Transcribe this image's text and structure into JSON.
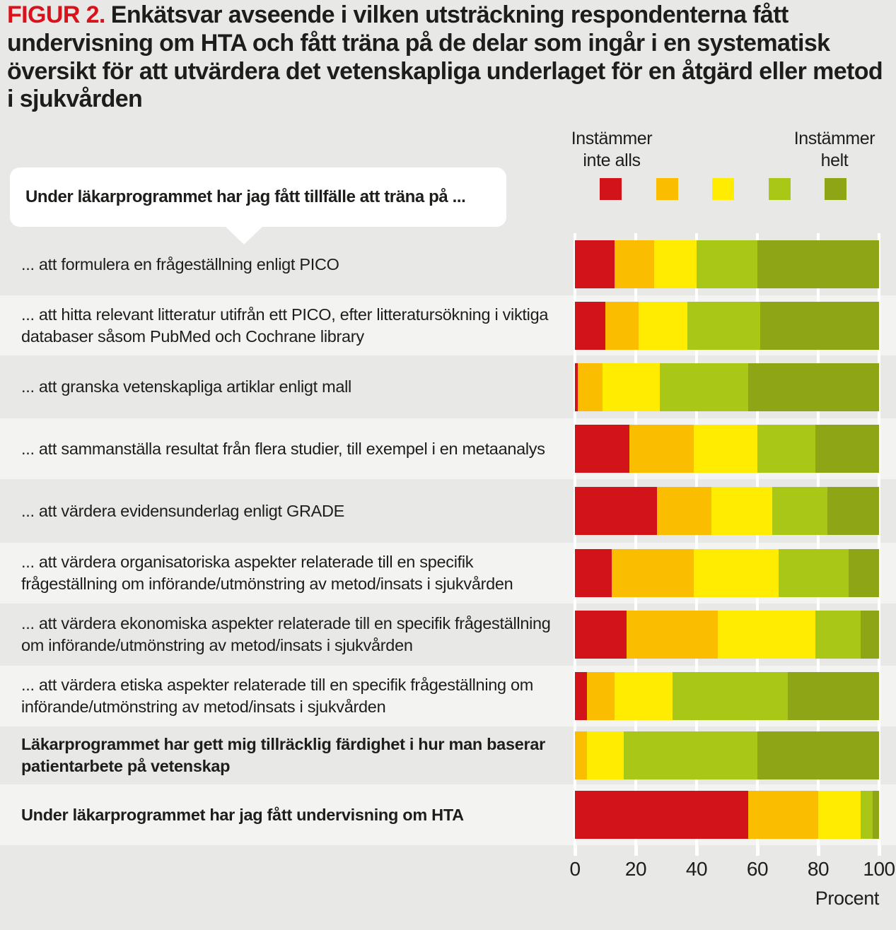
{
  "figure": {
    "label": "FIGUR 2.",
    "title_text": "Enkätsvar avseende i vilken utsträckning respondenterna fått undervisning om HTA och fått träna på de delar som ingår i en systematisk översikt för att utvärdera det vetenskapliga underlaget för en åtgärd eller metod i sjukvården"
  },
  "legend": {
    "left_label": "Instämmer\ninte alls",
    "right_label": "Instämmer\nhelt",
    "colors": [
      "#d2141a",
      "#fbbd00",
      "#ffec00",
      "#a8c717",
      "#8ea615"
    ]
  },
  "bubble": {
    "text": "Under läkarprogrammet har jag fått tillfälle att träna på ..."
  },
  "chart_data": {
    "type": "bar",
    "stacked": true,
    "orientation": "horizontal",
    "title": "FIGUR 2. Enkätsvar avseende i vilken utsträckning respondenterna fått undervisning om HTA och fått träna på de delar som ingår i en systematisk översikt för att utvärdera det vetenskapliga underlaget för en åtgärd eller metod i sjukvården",
    "xlabel": "Procent",
    "xlim": [
      0,
      100
    ],
    "x_ticks": [
      "0",
      "20",
      "40",
      "60",
      "80",
      "100"
    ],
    "grid": true,
    "scale_labels": {
      "min": "Instämmer inte alls",
      "max": "Instämmer helt"
    },
    "series_names": [
      "Instämmer inte alls",
      "2",
      "3",
      "4",
      "Instämmer helt"
    ],
    "colors": [
      "#d2141a",
      "#fbbd00",
      "#ffec00",
      "#a8c717",
      "#8ea615"
    ],
    "rows": [
      {
        "label": "... att formulera en frågeställning enligt PICO",
        "bold": false,
        "shaded": false,
        "values": [
          13,
          13,
          14,
          20,
          40
        ]
      },
      {
        "label": "... att hitta relevant litteratur utifrån ett PICO, efter litteratursökning i viktiga databaser såsom PubMed och Cochrane library",
        "bold": false,
        "shaded": true,
        "values": [
          10,
          11,
          16,
          24,
          39
        ]
      },
      {
        "label": "... att granska vetenskapliga artiklar enligt mall",
        "bold": false,
        "shaded": false,
        "values": [
          1,
          8,
          19,
          29,
          43
        ]
      },
      {
        "label": "... att sammanställa resultat från flera studier, till exempel i en metaanalys",
        "bold": false,
        "shaded": true,
        "values": [
          18,
          21,
          21,
          19,
          21
        ]
      },
      {
        "label": "... att värdera evidensunderlag enligt GRADE",
        "bold": false,
        "shaded": false,
        "values": [
          27,
          18,
          20,
          18,
          17
        ]
      },
      {
        "label": "... att värdera organisatoriska aspekter relaterade till en specifik frågeställning om införande/utmönstring av metod/insats i sjukvården",
        "bold": false,
        "shaded": true,
        "values": [
          12,
          27,
          28,
          23,
          10
        ]
      },
      {
        "label": "... att värdera ekonomiska aspekter relaterade till en specifik frågeställning om införande/utmönstring av metod/insats i sjukvården",
        "bold": false,
        "shaded": false,
        "values": [
          17,
          30,
          32,
          15,
          6
        ]
      },
      {
        "label": "... att värdera etiska aspekter relaterade till en specifik frågeställning om införande/utmönstring av metod/insats i sjukvården",
        "bold": false,
        "shaded": true,
        "values": [
          4,
          9,
          19,
          38,
          30
        ]
      },
      {
        "label": "Läkarprogrammet har gett mig tillräcklig färdighet i hur man baserar patientarbete på vetenskap",
        "bold": true,
        "shaded": false,
        "values": [
          0,
          4,
          12,
          44,
          40
        ]
      },
      {
        "label": "Under läkarprogrammet har jag fått undervisning om HTA",
        "bold": true,
        "shaded": true,
        "values": [
          57,
          23,
          14,
          4,
          2
        ]
      }
    ]
  }
}
